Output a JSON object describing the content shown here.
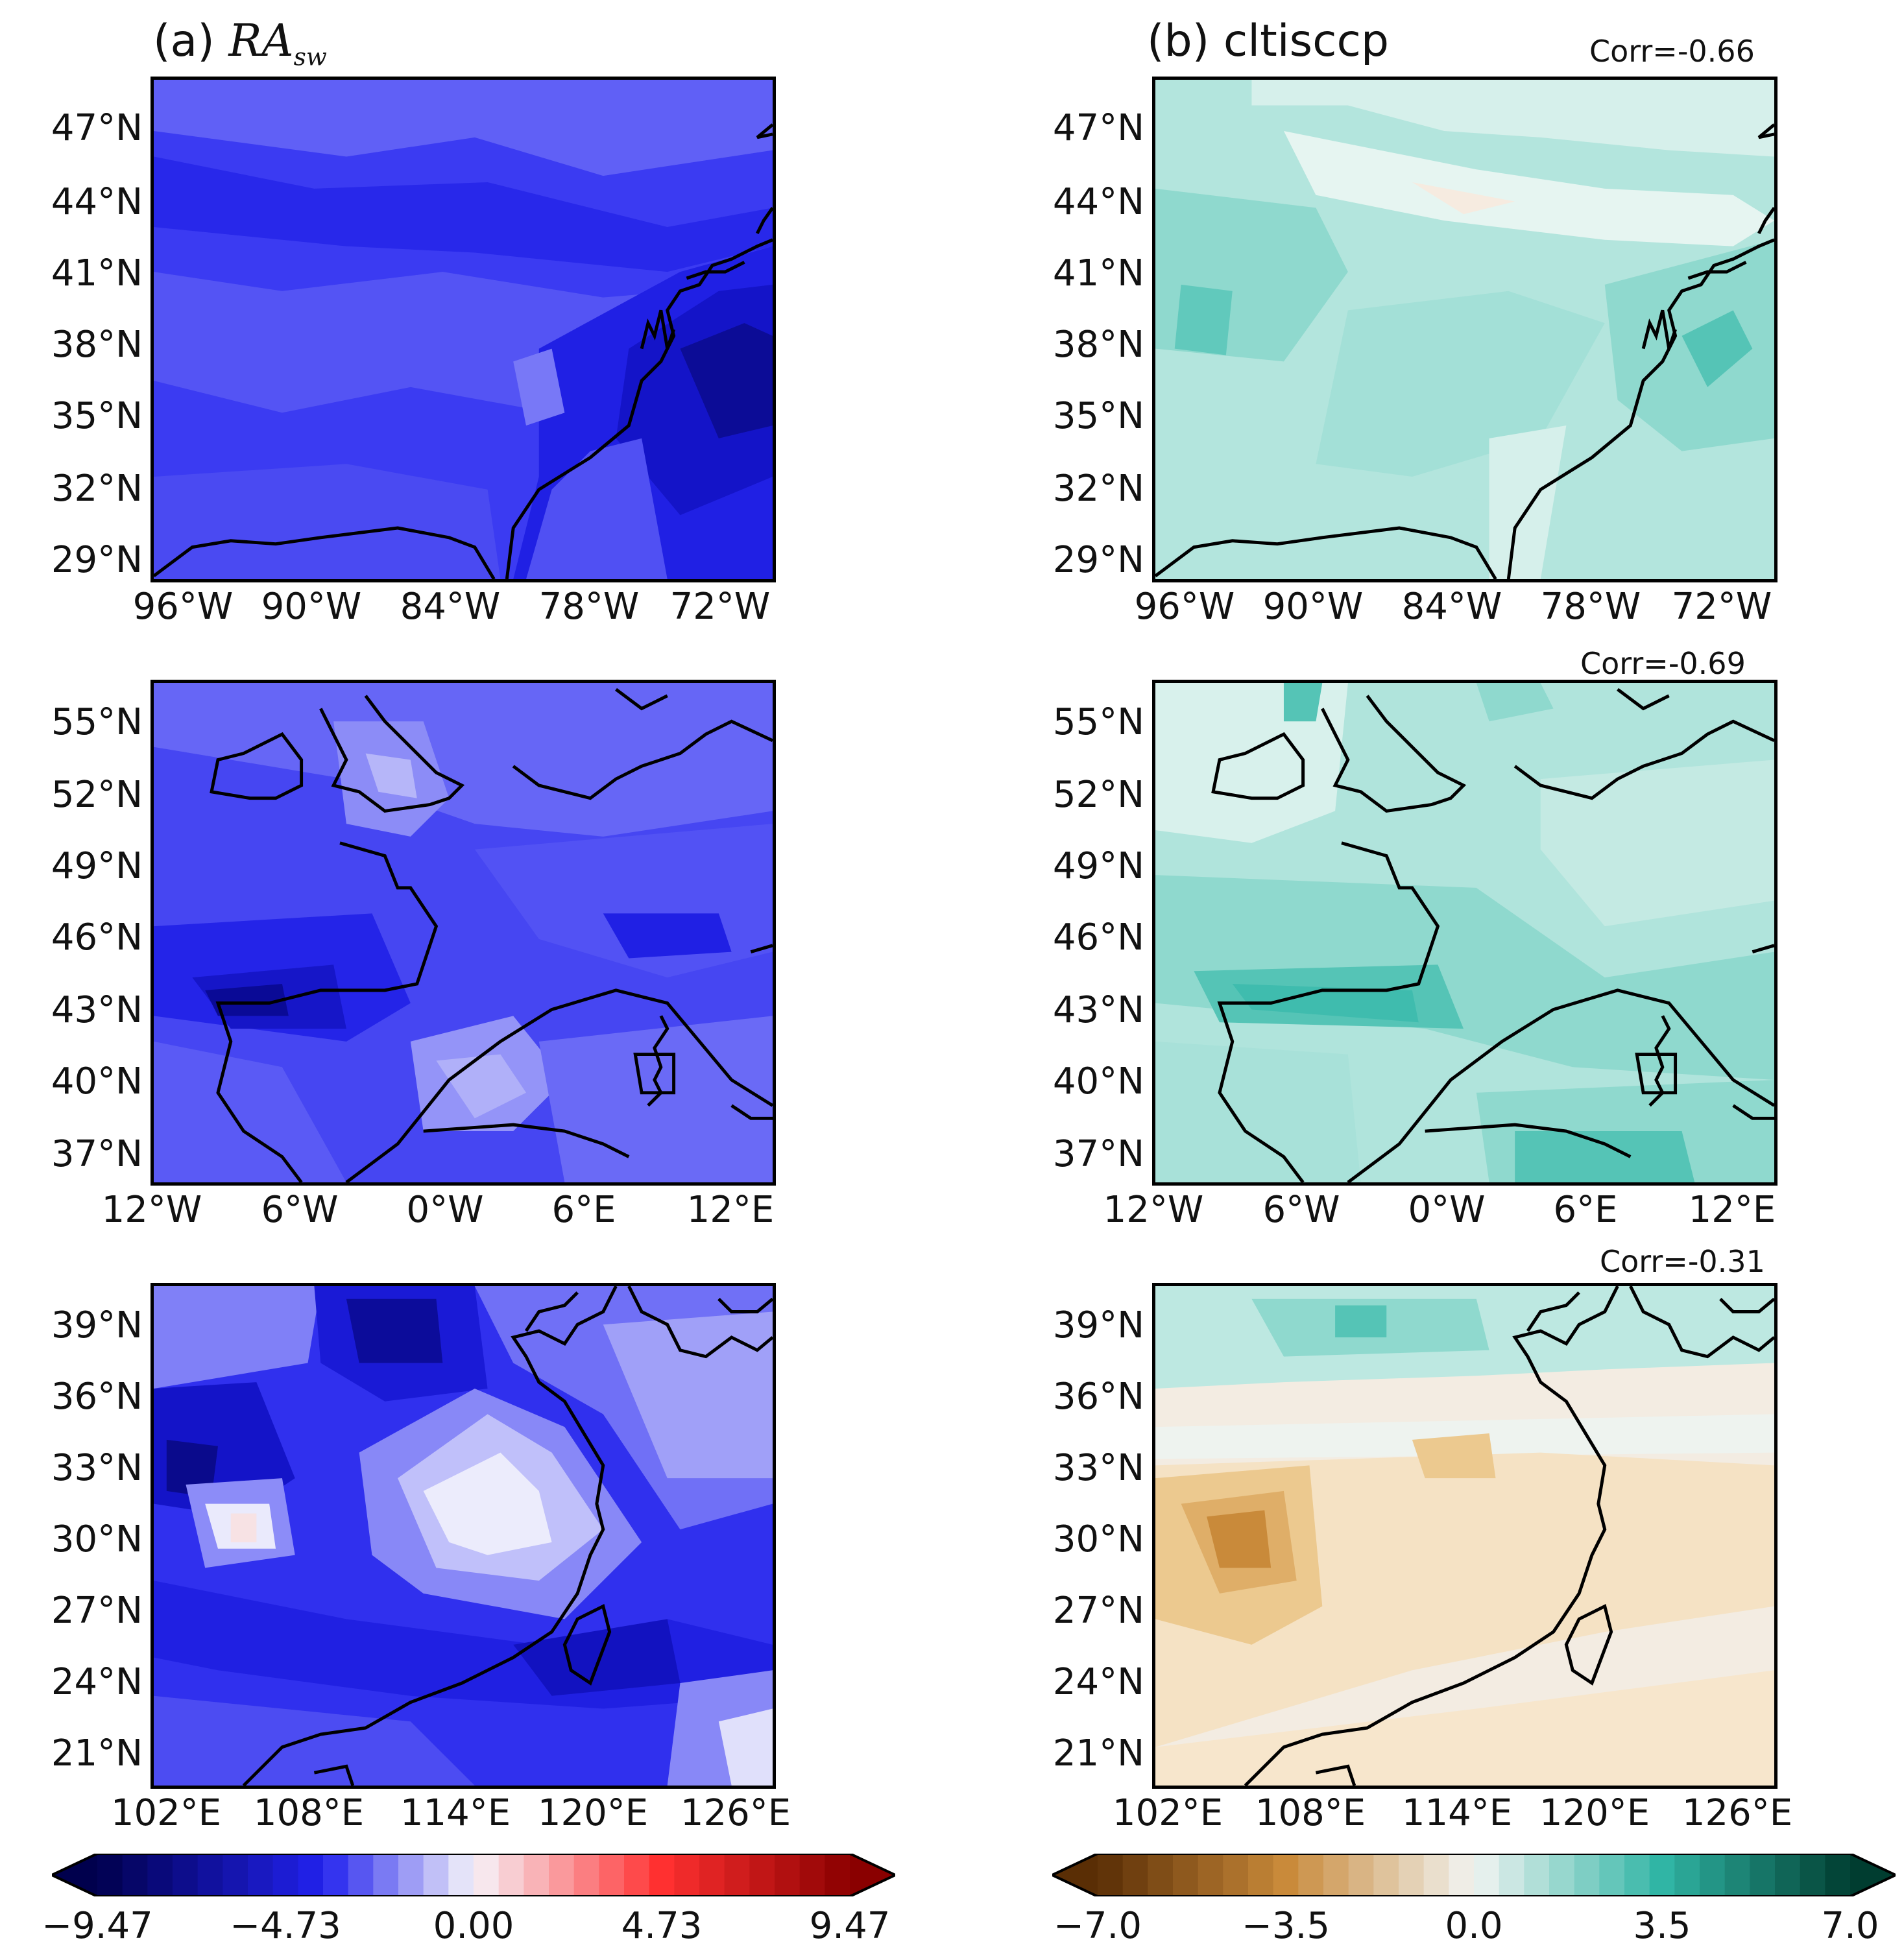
{
  "columns": [
    {
      "id": "a",
      "label": "(a)",
      "var_name": "RA",
      "var_sub": "sw"
    },
    {
      "id": "b",
      "label": "(b) cltisccp"
    }
  ],
  "panels": {
    "a1": {
      "lats": [
        "47°N",
        "44°N",
        "41°N",
        "38°N",
        "35°N",
        "32°N",
        "29°N"
      ],
      "lons": [
        "96°W",
        "90°W",
        "84°W",
        "78°W",
        "72°W"
      ]
    },
    "b1": {
      "corr": "Corr=-0.66",
      "lats": [
        "47°N",
        "44°N",
        "41°N",
        "38°N",
        "35°N",
        "32°N",
        "29°N"
      ],
      "lons": [
        "96°W",
        "90°W",
        "84°W",
        "78°W",
        "72°W"
      ]
    },
    "a2": {
      "lats": [
        "55°N",
        "52°N",
        "49°N",
        "46°N",
        "43°N",
        "40°N",
        "37°N"
      ],
      "lons": [
        "12°W",
        "6°W",
        "0°W",
        "6°E",
        "12°E"
      ]
    },
    "b2": {
      "corr": "Corr=-0.69",
      "lats": [
        "55°N",
        "52°N",
        "49°N",
        "46°N",
        "43°N",
        "40°N",
        "37°N"
      ],
      "lons": [
        "12°W",
        "6°W",
        "0°W",
        "6°E",
        "12°E"
      ]
    },
    "a3": {
      "lats": [
        "39°N",
        "36°N",
        "33°N",
        "30°N",
        "27°N",
        "24°N",
        "21°N"
      ],
      "lons": [
        "102°E",
        "108°E",
        "114°E",
        "120°E",
        "126°E"
      ]
    },
    "b3": {
      "corr": "Corr=-0.31",
      "lats": [
        "39°N",
        "36°N",
        "33°N",
        "30°N",
        "27°N",
        "24°N",
        "21°N"
      ],
      "lons": [
        "102°E",
        "108°E",
        "114°E",
        "120°E",
        "126°E"
      ]
    }
  },
  "colorbars": {
    "a": {
      "ticks": [
        "−9.47",
        "−4.73",
        "0.00",
        "4.73",
        "9.47"
      ],
      "range": [
        -9.47,
        9.47
      ]
    },
    "b": {
      "ticks": [
        "−7.0",
        "−3.5",
        "0.0",
        "3.5",
        "7.0"
      ],
      "range": [
        -7.0,
        7.0
      ]
    }
  },
  "colors": {
    "blue_dark": "#0a0a8c",
    "blue": "#2222ee",
    "blue_mid": "#5a5af5",
    "blue_light": "#9a9af8",
    "white": "#f4f2f6",
    "teal_light": "#c8ece6",
    "teal_mid": "#8fd9ce",
    "teal": "#40bfb0",
    "tan_light": "#f6e2c0",
    "tan": "#e7be82",
    "brown": "#c98a3a",
    "coast": "#000000"
  }
}
